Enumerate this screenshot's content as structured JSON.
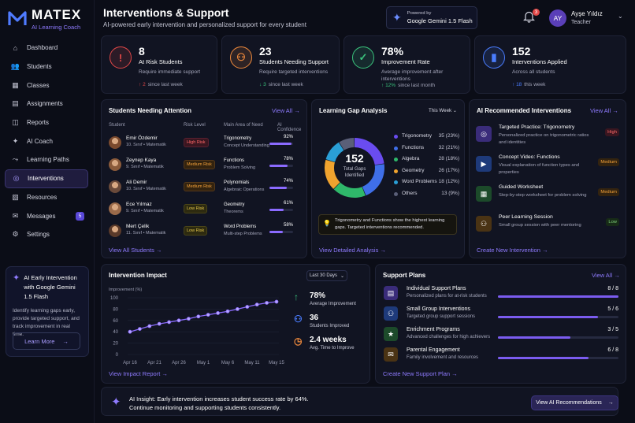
{
  "brand": {
    "name": "MATEX",
    "tagline": "AI Learning Coach"
  },
  "nav": [
    {
      "label": "Dashboard",
      "icon": "home-icon"
    },
    {
      "label": "Students",
      "icon": "users-icon"
    },
    {
      "label": "Classes",
      "icon": "calendar-icon"
    },
    {
      "label": "Assignments",
      "icon": "clipboard-icon"
    },
    {
      "label": "Reports",
      "icon": "report-icon"
    },
    {
      "label": "AI Coach",
      "icon": "sparkle-icon"
    },
    {
      "label": "Learning Paths",
      "icon": "path-icon"
    },
    {
      "label": "Interventions",
      "icon": "globe-icon",
      "active": true
    },
    {
      "label": "Resources",
      "icon": "layers-icon"
    },
    {
      "label": "Messages",
      "icon": "mail-icon",
      "badge": "5"
    },
    {
      "label": "Settings",
      "icon": "gear-icon"
    }
  ],
  "promo": {
    "title": "AI Early Intervention with Google Gemini 1.5 Flash",
    "desc": "Identify learning gaps early, provide targeted support, and track improvement in real time.",
    "button": "Learn More"
  },
  "header": {
    "title": "Interventions & Support",
    "subtitle": "AI-powered early intervention and personalized support for every student",
    "powered_by": "Powered by",
    "model": "Google Gemini 1.5 Flash",
    "notifications": "3",
    "user_initials": "AY",
    "user_name": "Ayşe Yıldız",
    "user_role": "Teacher"
  },
  "stats": [
    {
      "value": "8",
      "label": "At Risk Students",
      "desc": "Require immediate support",
      "change": "2",
      "change_text": "since last week",
      "color": "#e24848"
    },
    {
      "value": "23",
      "label": "Students Needing Support",
      "desc": "Require targeted interventions",
      "change": "3",
      "change_text": "since last week",
      "color": "#f08a3c"
    },
    {
      "value": "78%",
      "label": "Improvement Rate",
      "desc": "Average improvement after interventions",
      "change": "12%",
      "change_text": "since last month",
      "color": "#3ac47d"
    },
    {
      "value": "152",
      "label": "Interventions Applied",
      "desc": "Across all students",
      "change": "18",
      "change_text": "this week",
      "color": "#4a7dff"
    }
  ],
  "attention": {
    "title": "Students Needing Attention",
    "view_all": "View All",
    "headers": {
      "student": "Student",
      "risk": "Risk Level",
      "area": "Main Area of Need",
      "confidence": "AI Confidence"
    },
    "rows": [
      {
        "name": "Emir Özdemir",
        "class": "10. Sınıf • Matematik",
        "risk": "High Risk",
        "level": "high",
        "area": "Trigonometry",
        "area_sub": "Concept Understanding",
        "conf": "92%",
        "conf_val": 92
      },
      {
        "name": "Zeynep Kaya",
        "class": "9. Sınıf • Matematik",
        "risk": "Medium Risk",
        "level": "med",
        "area": "Functions",
        "area_sub": "Problem Solving",
        "conf": "78%",
        "conf_val": 78
      },
      {
        "name": "Ali Demir",
        "class": "10. Sınıf • Matematik",
        "risk": "Medium Risk",
        "level": "med",
        "area": "Polynomials",
        "area_sub": "Algebraic Operations",
        "conf": "74%",
        "conf_val": 74
      },
      {
        "name": "Ece Yılmaz",
        "class": "9. Sınıf • Matematik",
        "risk": "Low Risk",
        "level": "low",
        "area": "Geometry",
        "area_sub": "Theorems",
        "conf": "61%",
        "conf_val": 61
      },
      {
        "name": "Mert Çelik",
        "class": "11. Sınıf • Matematik",
        "risk": "Low Risk",
        "level": "low",
        "area": "Word Problems",
        "area_sub": "Multi-step Problems",
        "conf": "58%",
        "conf_val": 58
      }
    ],
    "footer": "View All Students"
  },
  "gap": {
    "title": "Learning Gap Analysis",
    "period": "This Week",
    "total": "152",
    "total_label": "Total Gaps Identified",
    "items": [
      {
        "name": "Trigonometry",
        "value": 35,
        "text": "35 (23%)",
        "color": "#6a4cf0"
      },
      {
        "name": "Functions",
        "value": 32,
        "text": "32 (21%)",
        "color": "#3f6fe8"
      },
      {
        "name": "Algebra",
        "value": 28,
        "text": "28 (18%)",
        "color": "#2fb86a"
      },
      {
        "name": "Geometry",
        "value": 26,
        "text": "26 (17%)",
        "color": "#f0a32e"
      },
      {
        "name": "Word Problems",
        "value": 18,
        "text": "18 (12%)",
        "color": "#2a9fd6"
      },
      {
        "name": "Others",
        "value": 13,
        "text": "13 (9%)",
        "color": "#5a5f78"
      }
    ],
    "insight": "Trigonometry and Functions show the highest learning gaps. Targeted interventions recommended.",
    "footer": "View Detailed Analysis"
  },
  "recommended": {
    "title": "AI Recommended Interventions",
    "view_all": "View All",
    "items": [
      {
        "title": "Targeted Practice: Trigonometry",
        "desc": "Personalized practice on trigonometric ratios and identities",
        "priority": "High",
        "level": "high",
        "icon": "target-icon",
        "color": "#3a2c7a"
      },
      {
        "title": "Concept Video: Functions",
        "desc": "Visual explanation of function types and properties",
        "priority": "Medium",
        "level": "med",
        "icon": "video-icon",
        "color": "#1e3a7a"
      },
      {
        "title": "Guided Worksheet",
        "desc": "Step-by-step worksheet for problem solving",
        "priority": "Medium",
        "level": "med",
        "icon": "worksheet-icon",
        "color": "#1c4a2a"
      },
      {
        "title": "Peer Learning Session",
        "desc": "Small group session with peer mentoring",
        "priority": "Low",
        "level": "low",
        "icon": "group-icon",
        "color": "#4a3314"
      }
    ],
    "footer": "Create New Intervention"
  },
  "impact": {
    "title": "Intervention Impact",
    "period": "Last 30 Days",
    "metrics": [
      {
        "value": "78%",
        "label": "Average Improvement",
        "icon": "arrow-up-icon",
        "color": "#3ac47d"
      },
      {
        "value": "36",
        "label": "Students Improved",
        "icon": "users-icon",
        "color": "#4a7dff"
      },
      {
        "value": "2.4 weeks",
        "label": "Avg. Time to Improve",
        "icon": "clock-icon",
        "color": "#f08a3c"
      }
    ],
    "footer": "View Impact Report"
  },
  "chart_data": {
    "type": "line",
    "ylabel": "Improvement (%)",
    "ylim": [
      0,
      100
    ],
    "yticks": [
      0,
      20,
      40,
      60,
      80,
      100
    ],
    "xticks": [
      "Apr 16",
      "Apr 21",
      "Apr 26",
      "May 1",
      "May 6",
      "May 11",
      "May 15"
    ],
    "grid": true,
    "x": [
      "Apr 16",
      "Apr 18",
      "Apr 20",
      "Apr 22",
      "Apr 24",
      "Apr 26",
      "Apr 28",
      "Apr 30",
      "May 2",
      "May 4",
      "May 6",
      "May 8",
      "May 10",
      "May 12",
      "May 14",
      "May 15"
    ],
    "y": [
      40,
      45,
      50,
      54,
      57,
      60,
      63,
      67,
      70,
      73,
      76,
      80,
      84,
      88,
      91,
      93
    ]
  },
  "plans": {
    "title": "Support Plans",
    "view_all": "View All",
    "items": [
      {
        "title": "Individual Support Plans",
        "desc": "Personalized plans for at-risk students",
        "count": "8 / 8",
        "fraction": 1.0,
        "icon": "person-plan-icon",
        "color": "#3a2c7a"
      },
      {
        "title": "Small Group Interventions",
        "desc": "Targeted group support sessions",
        "count": "5 / 6",
        "fraction": 0.833,
        "icon": "group-icon",
        "color": "#1e3a7a"
      },
      {
        "title": "Enrichment Programs",
        "desc": "Advanced challenges for high achievers",
        "count": "3 / 5",
        "fraction": 0.6,
        "icon": "star-icon",
        "color": "#1c4a2a"
      },
      {
        "title": "Parental Engagement",
        "desc": "Family involvement and resources",
        "count": "6 / 8",
        "fraction": 0.75,
        "icon": "chat-icon",
        "color": "#4a3314"
      }
    ],
    "footer": "Create New Support Plan"
  },
  "insight": {
    "line1": "AI Insight: Early intervention increases student success rate by 64%.",
    "line2": "Continue monitoring and supporting students consistently.",
    "button": "View AI Recommendations"
  }
}
